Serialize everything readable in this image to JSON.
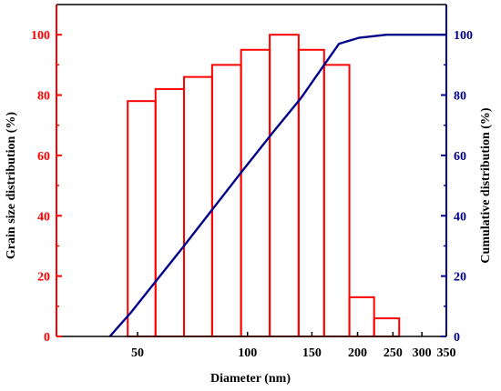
{
  "chart_data": {
    "type": "bar",
    "title": "",
    "xlabel": "Diameter (nm)",
    "ylabel_left": "Grain size distribution (%)",
    "ylabel_right": "Cumulative distribution (%)",
    "x_scale": "log",
    "xlim": [
      30,
      350
    ],
    "ylim": [
      0,
      110
    ],
    "x_ticks": [
      50,
      100,
      150,
      200,
      250,
      300,
      350
    ],
    "y_ticks": [
      0,
      20,
      40,
      60,
      80,
      100
    ],
    "colors": {
      "left_axis": "#ff0000",
      "right_axis": "#00008b",
      "bars": "#ff0000",
      "line": "#00008b"
    },
    "bars": [
      {
        "x0": 47,
        "x1": 56,
        "value": 78
      },
      {
        "x0": 56,
        "x1": 67,
        "value": 82
      },
      {
        "x0": 67,
        "x1": 80,
        "value": 86
      },
      {
        "x0": 80,
        "x1": 96,
        "value": 90
      },
      {
        "x0": 96,
        "x1": 115,
        "value": 95
      },
      {
        "x0": 115,
        "x1": 138,
        "value": 100
      },
      {
        "x0": 138,
        "x1": 162,
        "value": 95
      },
      {
        "x0": 162,
        "x1": 190,
        "value": 90
      },
      {
        "x0": 190,
        "x1": 222,
        "value": 13
      },
      {
        "x0": 222,
        "x1": 260,
        "value": 6
      }
    ],
    "series": [
      {
        "x": [
          42,
          48,
          55,
          66,
          80,
          97,
          118,
          140,
          162,
          178,
          202,
          240,
          350
        ],
        "y": [
          0,
          8,
          17,
          29,
          42,
          55,
          68,
          79,
          90,
          97,
          99,
          100,
          100
        ]
      }
    ]
  }
}
